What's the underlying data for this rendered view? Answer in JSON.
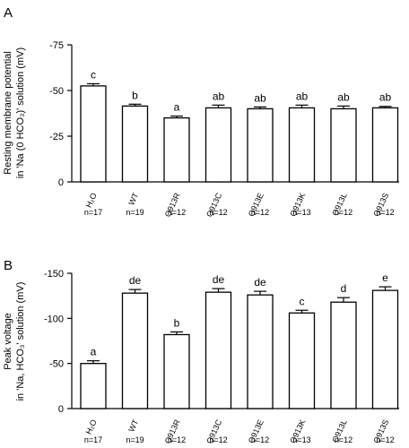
{
  "chart_data": [
    {
      "type": "bar",
      "panel": "A",
      "ylabel_line1": "Resting membrane potential",
      "ylabel_line2": "in 'Na (0 HCO₃)' solution (mV)",
      "categories": [
        "H₂O",
        "WT",
        "Q913R",
        "Q913C",
        "Q913E",
        "Q913K",
        "Q913L",
        "Q913S"
      ],
      "n_labels": [
        "n=17",
        "n=19",
        "n=12",
        "n=12",
        "n=12",
        "n=13",
        "n=12",
        "n=12"
      ],
      "values": [
        -52.5,
        -41.5,
        -35,
        -40.5,
        -40,
        -40.5,
        -40,
        -40.5
      ],
      "errors": [
        1.2,
        1.0,
        1.0,
        1.5,
        1.0,
        1.5,
        1.5,
        0.8
      ],
      "letters": [
        "c",
        "b",
        "a",
        "ab",
        "ab",
        "ab",
        "ab",
        "ab"
      ],
      "yticks": [
        "-75",
        "-50",
        "-25",
        "0"
      ],
      "ylim": [
        0,
        -75
      ],
      "grid": false
    },
    {
      "type": "bar",
      "panel": "B",
      "ylabel_line1": "Peak voltage",
      "ylabel_line2": "in 'Na, HCO₃' solution (mV)",
      "categories": [
        "H₂O",
        "WT",
        "Q913R",
        "Q913C",
        "Q913E",
        "Q913K",
        "Q913L",
        "Q913S"
      ],
      "n_labels": [
        "n=17",
        "n=19",
        "n=12",
        "n=12",
        "n=12",
        "n=13",
        "n=12",
        "n=12"
      ],
      "values": [
        -50,
        -128,
        -82,
        -129,
        -126,
        -106,
        -118,
        -131
      ],
      "errors": [
        3,
        4,
        3,
        4,
        4,
        3,
        5,
        4
      ],
      "letters": [
        "a",
        "de",
        "b",
        "de",
        "de",
        "c",
        "d",
        "e"
      ],
      "yticks": [
        "-150",
        "-100",
        "-50",
        "0"
      ],
      "ylim": [
        0,
        -150
      ],
      "grid": false
    }
  ]
}
